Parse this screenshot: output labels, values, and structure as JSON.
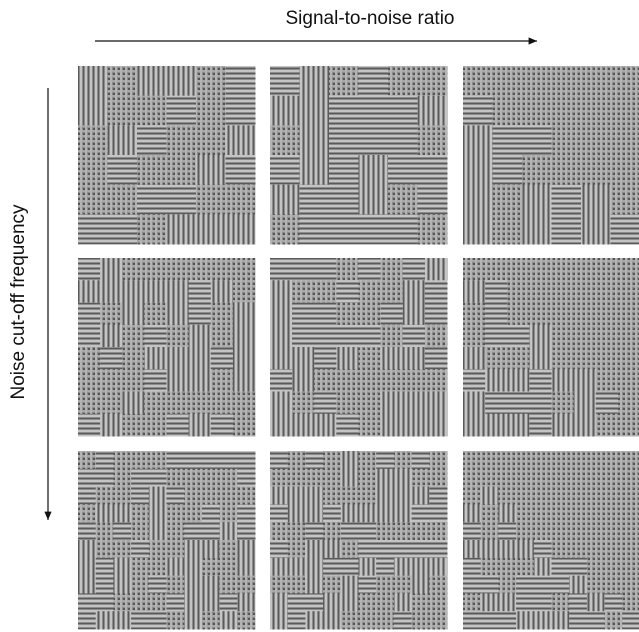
{
  "x_axis_label": "Signal-to-noise ratio",
  "y_axis_label": "Noise cut-off frequency"
}
